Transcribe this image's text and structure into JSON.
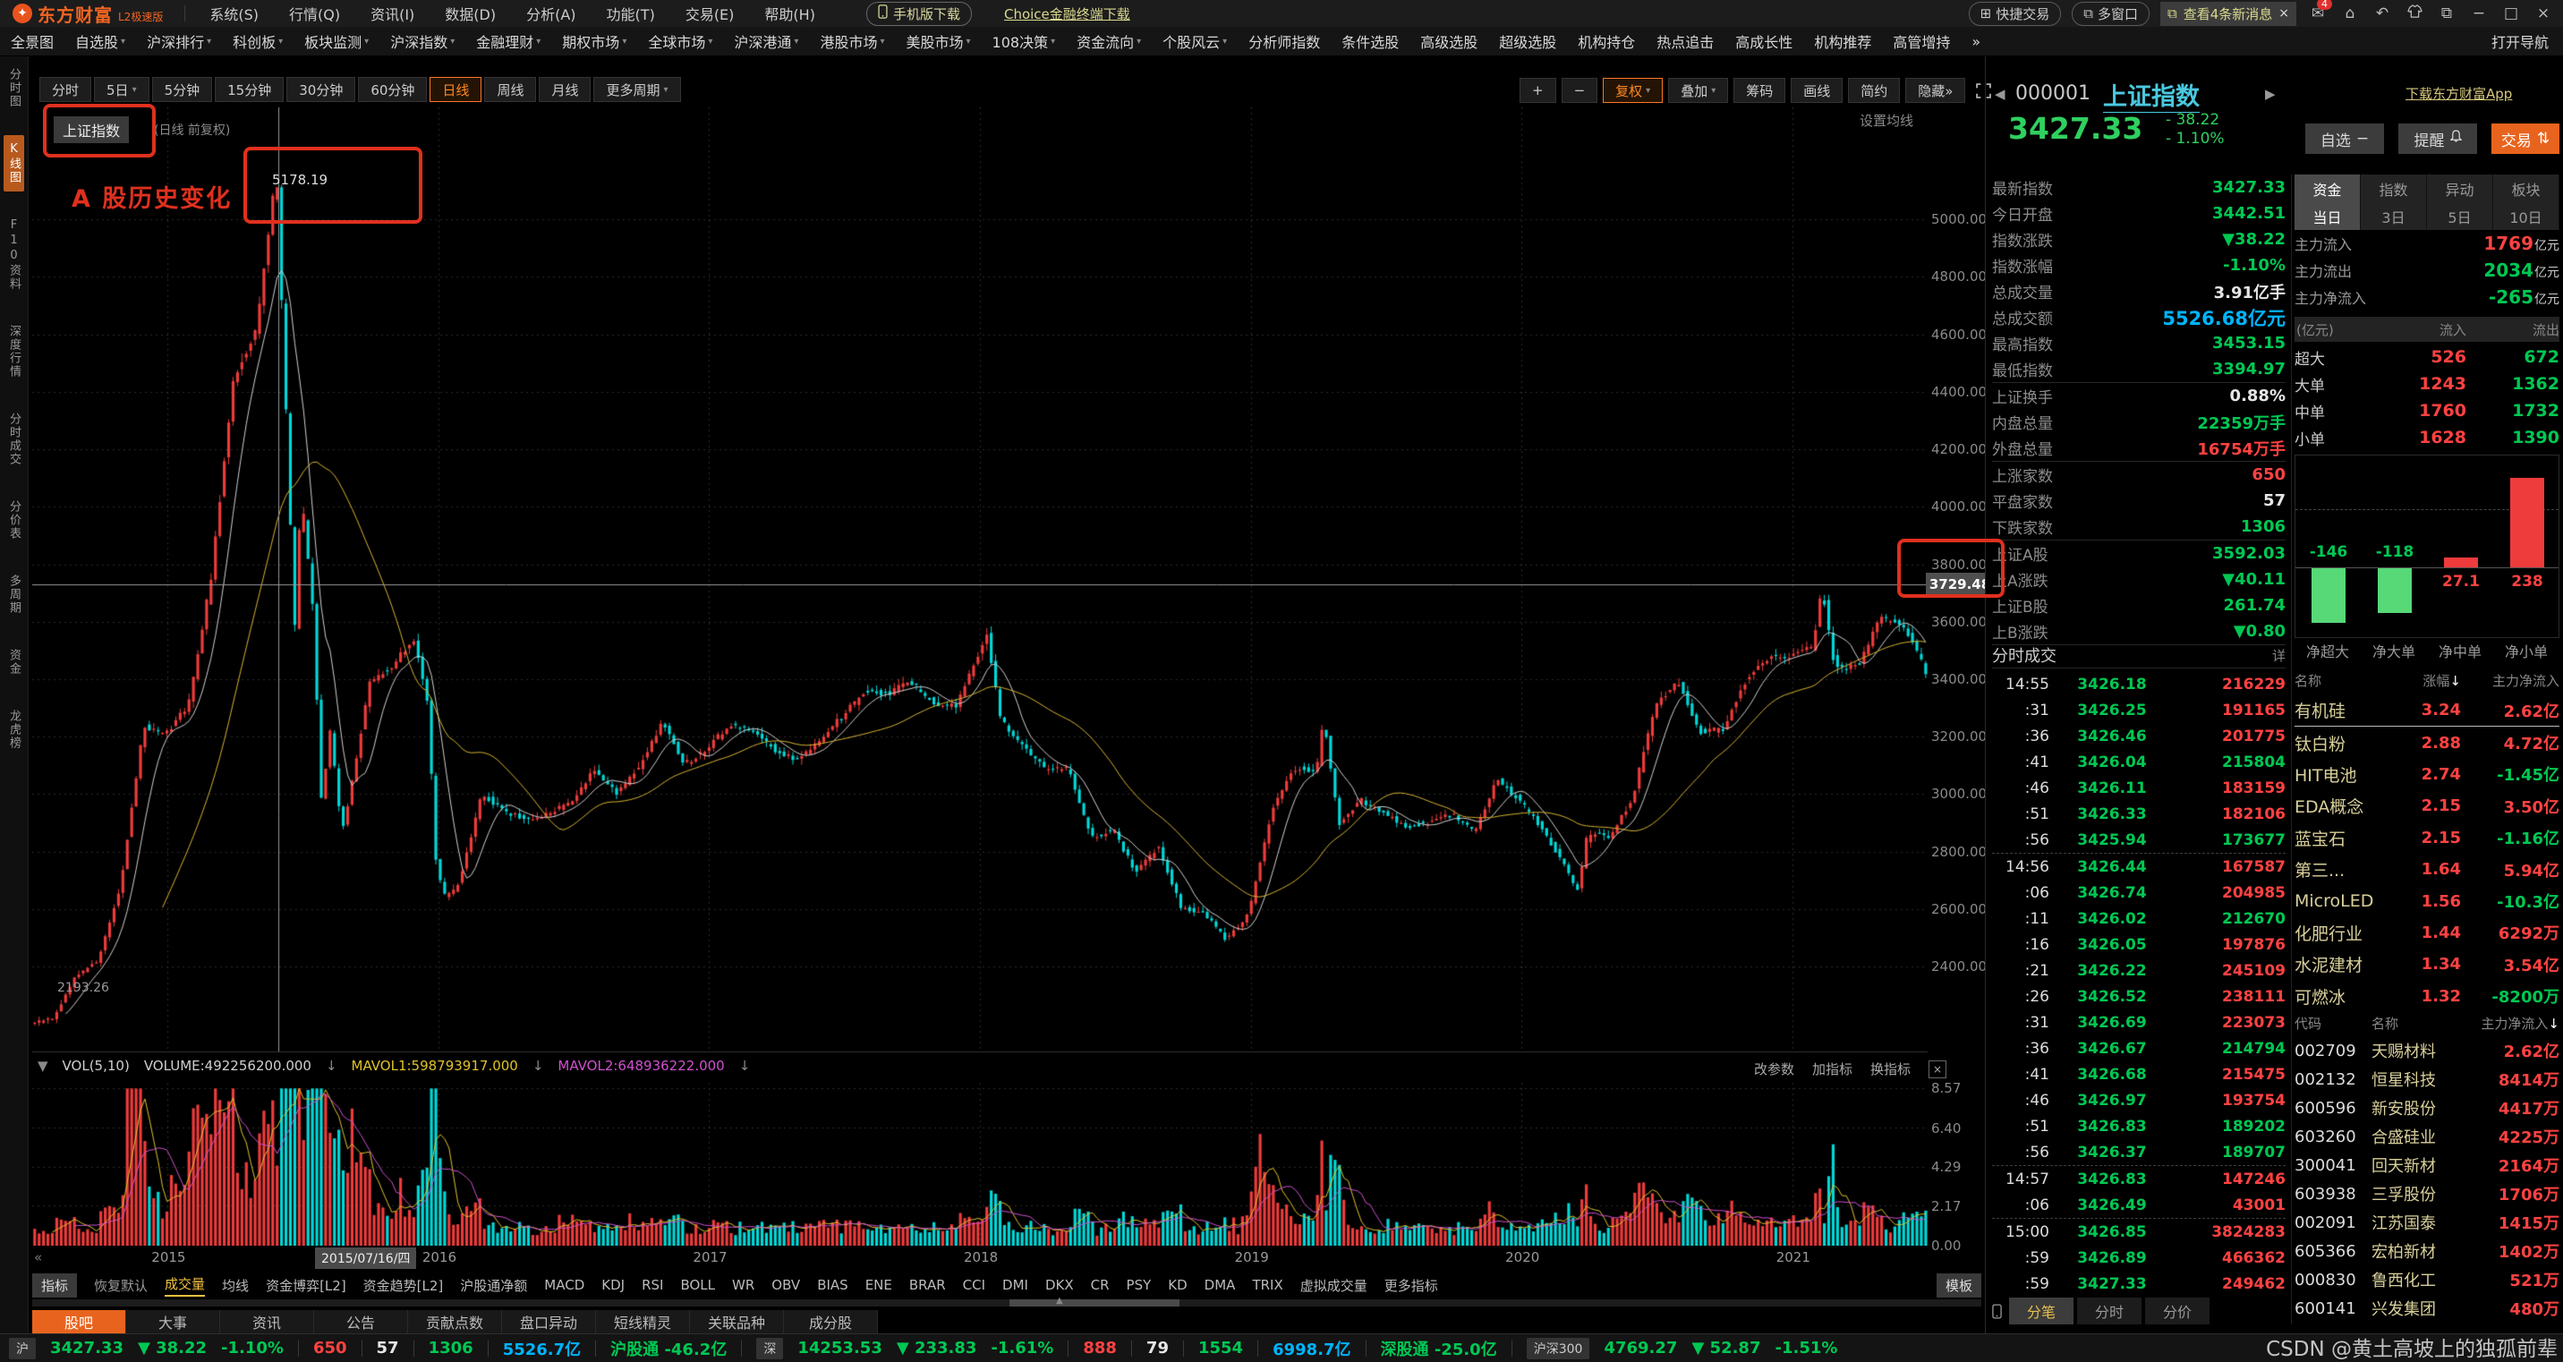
{
  "colors": {
    "up": "#ee3b3b",
    "down": "#00d8d8",
    "green": "#00c853",
    "red": "#ff4242",
    "cyan": "#00b4ff",
    "orange": "#e8641e",
    "yellow": "#e0c22a",
    "magenta": "#d050d0",
    "grid": "#2c2c2c",
    "crosshair": "#9a9a9a"
  },
  "app": {
    "logo": "东方财富",
    "logo_sub": "L2极速版",
    "menus": [
      "系统(S)",
      "行情(Q)",
      "资讯(I)",
      "数据(D)",
      "分析(A)",
      "功能(T)",
      "交易(E)",
      "帮助(H)"
    ],
    "phone_download": "手机版下载",
    "choice_download": "Choice金融终端下载",
    "quick_trade": "快捷交易",
    "multi_window": "多窗口",
    "notice": "查看4条新消息",
    "notice_badge": "4"
  },
  "nav": {
    "tabs": [
      {
        "label": "全景图"
      },
      {
        "label": "自选股",
        "dd": true
      },
      {
        "label": "沪深排行",
        "dd": true
      },
      {
        "label": "科创板",
        "dd": true
      },
      {
        "label": "板块监测",
        "dd": true
      },
      {
        "label": "沪深指数",
        "dd": true
      },
      {
        "label": "金融理财",
        "dd": true
      },
      {
        "label": "期权市场",
        "dd": true
      },
      {
        "label": "全球市场",
        "dd": true
      },
      {
        "label": "沪深港通",
        "dd": true
      },
      {
        "label": "港股市场",
        "dd": true
      },
      {
        "label": "美股市场",
        "dd": true
      },
      {
        "label": "108决策",
        "dd": true
      },
      {
        "label": "资金流向",
        "dd": true
      },
      {
        "label": "个股风云",
        "dd": true
      },
      {
        "label": "分析师指数"
      },
      {
        "label": "条件选股"
      },
      {
        "label": "高级选股"
      },
      {
        "label": "超级选股"
      },
      {
        "label": "机构持仓"
      },
      {
        "label": "热点追击"
      },
      {
        "label": "高成长性"
      },
      {
        "label": "机构推荐"
      },
      {
        "label": "高管增持"
      },
      {
        "label": "»"
      }
    ],
    "open": "打开导航"
  },
  "rail": {
    "items": [
      "分时图",
      "K线图",
      "F10资料",
      "深度行情",
      "分时成交",
      "分价表",
      "多周期",
      "资金",
      "龙虎榜"
    ],
    "active_index": 1
  },
  "period": {
    "items": [
      {
        "label": "分时"
      },
      {
        "label": "5日",
        "dd": true
      },
      {
        "label": "5分钟"
      },
      {
        "label": "15分钟"
      },
      {
        "label": "30分钟"
      },
      {
        "label": "60分钟"
      },
      {
        "label": "日线",
        "active": true
      },
      {
        "label": "周线"
      },
      {
        "label": "月线"
      },
      {
        "label": "更多周期",
        "dd": true
      }
    ],
    "right": [
      {
        "label": "+"
      },
      {
        "label": "−"
      },
      {
        "label": "复权",
        "dd": true,
        "active": true
      },
      {
        "label": "叠加",
        "dd": true
      },
      {
        "label": "筹码"
      },
      {
        "label": "画线"
      },
      {
        "label": "简约"
      },
      {
        "label": "隐藏»"
      }
    ]
  },
  "chart": {
    "symbol": "上证指数",
    "mode": "(日线 前复权)",
    "annotation": "A 股历史变化",
    "set_ma": "设置均线",
    "back_hint": "«",
    "peak_label": "5178.19",
    "low_label": "2193.26",
    "cross_price": "3729.48",
    "cross_date": "2015/07/16/四",
    "y_ticks": [
      "5000.00",
      "4800.00",
      "4600.00",
      "4400.00",
      "4200.00",
      "4000.00",
      "3800.00",
      "3600.00",
      "3400.00",
      "3200.00",
      "3000.00",
      "2800.00",
      "2600.00",
      "2400.00"
    ],
    "x_years": [
      {
        "t": 6,
        "label": "2015"
      },
      {
        "t": 18,
        "label": "2016"
      },
      {
        "t": 30,
        "label": "2017"
      },
      {
        "t": 42,
        "label": "2018"
      },
      {
        "t": 54,
        "label": "2019"
      },
      {
        "t": 66,
        "label": "2020"
      },
      {
        "t": 78,
        "label": "2021"
      }
    ],
    "vol_ticks": [
      "8.57",
      "6.40",
      "4.29",
      "2.17",
      "0.00"
    ],
    "vol_header": {
      "icon": "▼",
      "name": "VOL(5,10)",
      "volume": "VOLUME:492256200.000",
      "mavol1": "MAVOL1:598793917.000",
      "mavol2": "MAVOL2:648936222.000",
      "arrow": "↓"
    },
    "vol_actions": [
      "改参数",
      "加指标",
      "换指标"
    ]
  },
  "chart_data": {
    "type": "candlestick",
    "symbol": "000001 上证指数",
    "period": "日线 前复权",
    "date_range": [
      "2014-07",
      "2021-07"
    ],
    "ylim": [
      2100,
      5390
    ],
    "y_ticks": [
      5000,
      4800,
      4600,
      4400,
      4200,
      4000,
      3800,
      3600,
      3400,
      3200,
      3000,
      2800,
      2600,
      2400
    ],
    "volume_axis": [
      8.57,
      6.4,
      4.29,
      2.17,
      0.0
    ],
    "peak": 5178.19,
    "start_low": 2193.26,
    "crosshair": {
      "price": 3729.48,
      "date": "2015/07/16"
    },
    "anchors": [
      [
        0,
        2201
      ],
      [
        1,
        2217
      ],
      [
        2,
        2364
      ],
      [
        3,
        2420
      ],
      [
        4,
        2683
      ],
      [
        5,
        3235
      ],
      [
        6,
        3210
      ],
      [
        7,
        3310
      ],
      [
        8,
        3748
      ],
      [
        9,
        4442
      ],
      [
        10,
        4612
      ],
      [
        10.9,
        5178
      ],
      [
        11.4,
        4200
      ],
      [
        11.7,
        3550
      ],
      [
        12.0,
        4050
      ],
      [
        12.5,
        3664
      ],
      [
        12.9,
        2971
      ],
      [
        13.3,
        3230
      ],
      [
        13.8,
        2860
      ],
      [
        14.3,
        3053
      ],
      [
        15,
        3383
      ],
      [
        16,
        3445
      ],
      [
        17,
        3539
      ],
      [
        17.6,
        3320
      ],
      [
        18,
        2738
      ],
      [
        18.4,
        2638
      ],
      [
        19,
        2688
      ],
      [
        20,
        3004
      ],
      [
        21,
        2938
      ],
      [
        22,
        2917
      ],
      [
        23,
        2930
      ],
      [
        24,
        2979
      ],
      [
        25,
        3085
      ],
      [
        26,
        3005
      ],
      [
        27,
        3100
      ],
      [
        28,
        3250
      ],
      [
        29,
        3104
      ],
      [
        30,
        3159
      ],
      [
        31,
        3242
      ],
      [
        32,
        3223
      ],
      [
        33,
        3155
      ],
      [
        34,
        3117
      ],
      [
        35,
        3192
      ],
      [
        36,
        3273
      ],
      [
        37,
        3361
      ],
      [
        38,
        3349
      ],
      [
        39,
        3393
      ],
      [
        40,
        3317
      ],
      [
        41,
        3307
      ],
      [
        42,
        3481
      ],
      [
        42.4,
        3559
      ],
      [
        43,
        3259
      ],
      [
        44,
        3169
      ],
      [
        45,
        3082
      ],
      [
        46,
        3095
      ],
      [
        47,
        2847
      ],
      [
        48,
        2876
      ],
      [
        49,
        2725
      ],
      [
        50,
        2821
      ],
      [
        51,
        2603
      ],
      [
        52,
        2588
      ],
      [
        53,
        2494
      ],
      [
        54,
        2585
      ],
      [
        55,
        2941
      ],
      [
        56,
        3091
      ],
      [
        57,
        3078
      ],
      [
        57.3,
        3270
      ],
      [
        58,
        2899
      ],
      [
        59,
        2979
      ],
      [
        60,
        2933
      ],
      [
        61,
        2886
      ],
      [
        62,
        2905
      ],
      [
        63,
        2929
      ],
      [
        64,
        2872
      ],
      [
        65,
        3050
      ],
      [
        66,
        2977
      ],
      [
        67,
        2880
      ],
      [
        68,
        2750
      ],
      [
        68.6,
        2660
      ],
      [
        69,
        2860
      ],
      [
        70,
        2852
      ],
      [
        71,
        2985
      ],
      [
        72,
        3310
      ],
      [
        73,
        3396
      ],
      [
        74,
        3218
      ],
      [
        75,
        3225
      ],
      [
        76,
        3392
      ],
      [
        77,
        3473
      ],
      [
        78,
        3483
      ],
      [
        79,
        3509
      ],
      [
        79.4,
        3728
      ],
      [
        79.8,
        3509
      ],
      [
        80,
        3442
      ],
      [
        81,
        3447
      ],
      [
        82,
        3615
      ],
      [
        83,
        3591
      ],
      [
        84,
        3427
      ]
    ]
  },
  "panel": {
    "code": "000001",
    "name": "上证指数",
    "download_link": "下载东方财富App",
    "price": "3427.33",
    "change": "- 38.22",
    "pct": "- 1.10%",
    "fav_label": "自选",
    "fav_icon": "−",
    "alert_label": "提醒",
    "trade_label": "交易",
    "trade_icon": "⇅",
    "fields": [
      [
        "最新指数",
        "3427.33",
        "g"
      ],
      [
        "今日开盘",
        "3442.51",
        "g"
      ],
      [
        "指数涨跌",
        "▼38.22",
        "g"
      ],
      [
        "指数涨幅",
        "-1.10%",
        "g"
      ],
      [
        "总成交量",
        "3.91亿手",
        "w"
      ],
      [
        "总成交额",
        "5526.68亿元",
        "c",
        "big"
      ],
      [
        "最高指数",
        "3453.15",
        "g"
      ],
      [
        "最低指数",
        "3394.97",
        "g",
        "sep"
      ],
      [
        "上证换手",
        "0.88%",
        "w"
      ],
      [
        "内盘总量",
        "22359万手",
        "g"
      ],
      [
        "外盘总量",
        "16754万手",
        "r",
        "sep"
      ],
      [
        "上涨家数",
        "650",
        "r"
      ],
      [
        "平盘家数",
        "57",
        "w"
      ],
      [
        "下跌家数",
        "1306",
        "g",
        "sep"
      ],
      [
        "上证A股",
        "3592.03",
        "g"
      ],
      [
        "上A涨跌",
        "▼40.11",
        "g"
      ],
      [
        "上证B股",
        "261.74",
        "g"
      ],
      [
        "上B涨跌",
        "▼0.80",
        "g",
        "sep"
      ]
    ],
    "tick_header": "分时成交",
    "tick_more": "详",
    "ticks": [
      [
        "14:55",
        "3426.18",
        "216229",
        "r"
      ],
      [
        ":31",
        "3426.25",
        "191165",
        "r"
      ],
      [
        ":36",
        "3426.46",
        "201775",
        "r"
      ],
      [
        ":41",
        "3426.04",
        "215804",
        "g"
      ],
      [
        ":46",
        "3426.11",
        "183159",
        "r"
      ],
      [
        ":51",
        "3426.33",
        "182106",
        "r"
      ],
      [
        ":56",
        "3425.94",
        "173677",
        "g"
      ],
      [
        "14:56",
        "3426.44",
        "167587",
        "r",
        "sep"
      ],
      [
        ":06",
        "3426.74",
        "204985",
        "r"
      ],
      [
        ":11",
        "3426.02",
        "212670",
        "g"
      ],
      [
        ":16",
        "3426.05",
        "197876",
        "r"
      ],
      [
        ":21",
        "3426.22",
        "245109",
        "r"
      ],
      [
        ":26",
        "3426.52",
        "238111",
        "r"
      ],
      [
        ":31",
        "3426.69",
        "223073",
        "r"
      ],
      [
        ":36",
        "3426.67",
        "214794",
        "g"
      ],
      [
        ":41",
        "3426.68",
        "215475",
        "r"
      ],
      [
        ":46",
        "3426.97",
        "193754",
        "r"
      ],
      [
        ":51",
        "3426.83",
        "189202",
        "g"
      ],
      [
        ":56",
        "3426.37",
        "189707",
        "g"
      ],
      [
        "14:57",
        "3426.83",
        "147246",
        "r",
        "sep"
      ],
      [
        ":06",
        "3426.49",
        "43001",
        "r"
      ],
      [
        "15:00",
        "3426.85",
        "3824283",
        "r",
        "sep"
      ],
      [
        ":59",
        "3426.89",
        "466362",
        "r"
      ],
      [
        ":59",
        "3427.33",
        "249462",
        "r"
      ]
    ],
    "bottom_tabs": [
      {
        "label": "分笔",
        "active": true
      },
      {
        "label": "分时"
      },
      {
        "label": "分价"
      }
    ]
  },
  "funds": {
    "tabs": [
      {
        "label": "资金",
        "active": true
      },
      {
        "label": "指数"
      },
      {
        "label": "异动"
      },
      {
        "label": "板块"
      }
    ],
    "sub_tabs": [
      {
        "label": "当日",
        "active": true
      },
      {
        "label": "3日"
      },
      {
        "label": "5日"
      },
      {
        "label": "10日"
      }
    ],
    "rows": [
      [
        "主力流入",
        "1769",
        "亿元",
        "r"
      ],
      [
        "主力流出",
        "2034",
        "亿元",
        "g"
      ],
      [
        "主力净流入",
        "-265",
        "亿元",
        "g"
      ]
    ],
    "flow_header": [
      "(亿元)",
      "流入",
      "流出"
    ],
    "flows": [
      [
        "超大",
        "526",
        "672"
      ],
      [
        "大单",
        "1243",
        "1362"
      ],
      [
        "中单",
        "1760",
        "1732"
      ],
      [
        "小单",
        "1628",
        "1390"
      ]
    ],
    "net": {
      "labels": [
        "净超大",
        "净大单",
        "净中单",
        "净小单"
      ],
      "values": [
        -146,
        -118,
        27.1,
        238
      ]
    },
    "sector_header": [
      "名称",
      "涨幅",
      "主力净流入"
    ],
    "sectors": [
      [
        "有机硅",
        "3.24",
        "2.62亿",
        "r"
      ],
      [
        "钛白粉",
        "2.88",
        "4.72亿",
        "r"
      ],
      [
        "HIT电池",
        "2.74",
        "-1.45亿",
        "g"
      ],
      [
        "EDA概念",
        "2.15",
        "3.50亿",
        "r"
      ],
      [
        "蓝宝石",
        "2.15",
        "-1.16亿",
        "g"
      ],
      [
        "第三...",
        "1.64",
        "5.94亿",
        "r"
      ],
      [
        "MicroLED",
        "1.56",
        "-10.3亿",
        "g"
      ],
      [
        "化肥行业",
        "1.44",
        "6292万",
        "r"
      ],
      [
        "水泥建材",
        "1.34",
        "3.54亿",
        "r"
      ],
      [
        "可燃冰",
        "1.32",
        "-8200万",
        "g"
      ]
    ],
    "stock_header": [
      "代码",
      "名称",
      "主力净流入"
    ],
    "stocks": [
      [
        "002709",
        "天赐材料",
        "2.62亿"
      ],
      [
        "002132",
        "恒星科技",
        "8414万"
      ],
      [
        "600596",
        "新安股份",
        "4417万"
      ],
      [
        "603260",
        "合盛硅业",
        "4225万"
      ],
      [
        "300041",
        "回天新材",
        "2164万"
      ],
      [
        "603938",
        "三孚股份",
        "1706万"
      ],
      [
        "002091",
        "江苏国泰",
        "1415万"
      ],
      [
        "605366",
        "宏柏新材",
        "1402万"
      ],
      [
        "000830",
        "鲁西化工",
        "521万"
      ],
      [
        "600141",
        "兴发集团",
        "480万"
      ]
    ]
  },
  "indicator": {
    "label": "指标",
    "reset": "恢复默认",
    "template": "模板",
    "items": [
      {
        "label": "成交量",
        "active": true
      },
      {
        "label": "均线"
      },
      {
        "label": "资金博弈[L2]"
      },
      {
        "label": "资金趋势[L2]"
      },
      {
        "label": "沪股通净额"
      },
      {
        "label": "MACD"
      },
      {
        "label": "KDJ"
      },
      {
        "label": "RSI"
      },
      {
        "label": "BOLL"
      },
      {
        "label": "WR"
      },
      {
        "label": "OBV"
      },
      {
        "label": "BIAS"
      },
      {
        "label": "ENE"
      },
      {
        "label": "BRAR"
      },
      {
        "label": "CCI"
      },
      {
        "label": "DMI"
      },
      {
        "label": "DKX"
      },
      {
        "label": "CR"
      },
      {
        "label": "PSY"
      },
      {
        "label": "KD"
      },
      {
        "label": "DMA"
      },
      {
        "label": "TRIX"
      },
      {
        "label": "虚拟成交量"
      },
      {
        "label": "更多指标"
      }
    ]
  },
  "info_tabs": [
    {
      "label": "股吧",
      "active": true
    },
    {
      "label": "大事"
    },
    {
      "label": "资讯"
    },
    {
      "label": "公告"
    },
    {
      "label": "贡献点数"
    },
    {
      "label": "盘口异动"
    },
    {
      "label": "短线精灵"
    },
    {
      "label": "关联品种"
    },
    {
      "label": "成分股"
    }
  ],
  "status": {
    "cells": [
      {
        "chip": "沪"
      },
      {
        "t": "3427.33",
        "c": "g"
      },
      {
        "t": "▼ 38.22",
        "c": "g"
      },
      {
        "t": "-1.10%",
        "c": "g"
      },
      {
        "d": true
      },
      {
        "t": "650",
        "c": "r"
      },
      {
        "d": true
      },
      {
        "t": "57",
        "c": "w"
      },
      {
        "d": true
      },
      {
        "t": "1306",
        "c": "g"
      },
      {
        "d": true
      },
      {
        "t": "5526.7亿",
        "c": "c"
      },
      {
        "d": true
      },
      {
        "t": "沪股通 -46.2亿",
        "c": "g"
      },
      {
        "d": true
      },
      {
        "chip": "深"
      },
      {
        "t": "14253.53",
        "c": "g"
      },
      {
        "t": "▼ 233.83",
        "c": "g"
      },
      {
        "t": "-1.61%",
        "c": "g"
      },
      {
        "d": true
      },
      {
        "t": "888",
        "c": "r"
      },
      {
        "d": true
      },
      {
        "t": "79",
        "c": "w"
      },
      {
        "d": true
      },
      {
        "t": "1554",
        "c": "g"
      },
      {
        "d": true
      },
      {
        "t": "6998.7亿",
        "c": "c"
      },
      {
        "d": true
      },
      {
        "t": "深股通 -25.0亿",
        "c": "g"
      },
      {
        "d": true
      },
      {
        "chip": "沪深300"
      },
      {
        "t": "4769.27",
        "c": "g"
      },
      {
        "t": "▼ 52.87",
        "c": "g"
      },
      {
        "t": "-1.51%",
        "c": "g"
      }
    ]
  },
  "watermark": "CSDN @黄土高坡上的独孤前辈"
}
